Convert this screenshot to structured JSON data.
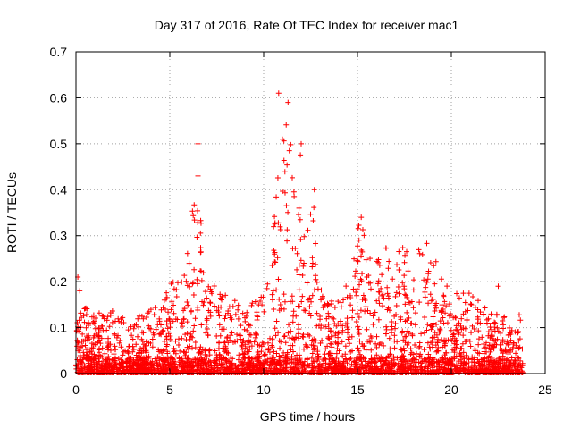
{
  "chart_data": {
    "type": "scatter",
    "title": "Day 317 of 2016, Rate Of TEC Index for receiver mac1",
    "xlabel": "GPS time / hours",
    "ylabel": "ROTI / TECUs",
    "xlim": [
      0,
      25
    ],
    "ylim": [
      0,
      0.7
    ],
    "x_ticks": [
      0,
      5,
      10,
      15,
      20,
      25
    ],
    "x_tick_labels": [
      "0",
      "5",
      "10",
      "15",
      "20",
      "25"
    ],
    "y_ticks": [
      0,
      0.1,
      0.2,
      0.3,
      0.4,
      0.5,
      0.6,
      0.7
    ],
    "y_tick_labels": [
      "0",
      "0.1",
      "0.2",
      "0.3",
      "0.4",
      "0.5",
      "0.6",
      "0.7"
    ],
    "grid": true,
    "marker": "plus",
    "marker_color": "#ff0000",
    "x_range_of_data": [
      0,
      23.8
    ],
    "envelope": {
      "x": [
        0,
        0.3,
        1,
        2,
        3,
        4,
        4.5,
        5,
        5.5,
        6,
        6.3,
        6.5,
        6.8,
        7,
        8,
        9,
        9.5,
        10,
        10.5,
        10.8,
        11,
        11.3,
        11.6,
        12,
        12.3,
        12.7,
        13,
        13.5,
        14,
        14.5,
        15,
        15.5,
        16,
        16.5,
        17,
        17.5,
        18,
        18.5,
        19,
        20,
        21,
        22,
        23,
        23.8
      ],
      "y": [
        0.21,
        0.15,
        0.13,
        0.14,
        0.12,
        0.14,
        0.15,
        0.2,
        0.21,
        0.27,
        0.43,
        0.5,
        0.22,
        0.2,
        0.18,
        0.15,
        0.16,
        0.2,
        0.3,
        0.61,
        0.5,
        0.59,
        0.4,
        0.5,
        0.3,
        0.4,
        0.2,
        0.16,
        0.16,
        0.2,
        0.34,
        0.3,
        0.25,
        0.28,
        0.26,
        0.28,
        0.25,
        0.3,
        0.26,
        0.17,
        0.19,
        0.15,
        0.12,
        0.16
      ]
    },
    "sample_points": {
      "x": [
        0.1,
        0.2,
        6.5,
        6.5,
        10.8,
        11,
        11.3,
        12,
        12.7,
        15.2,
        22.5
      ],
      "y": [
        0.21,
        0.18,
        0.5,
        0.43,
        0.61,
        0.51,
        0.59,
        0.5,
        0.4,
        0.34,
        0.19
      ]
    }
  }
}
